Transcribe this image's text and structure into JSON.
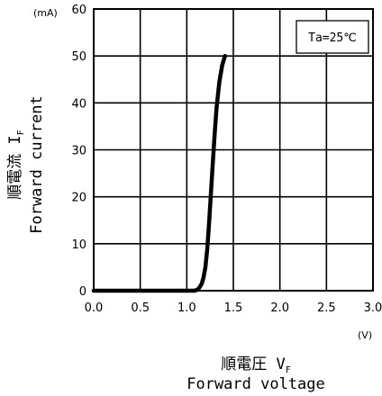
{
  "chart_data": {
    "type": "line",
    "x": [
      0.0,
      0.5,
      1.0,
      1.05,
      1.08,
      1.1,
      1.12,
      1.14,
      1.16,
      1.18,
      1.2,
      1.22,
      1.24,
      1.26,
      1.28,
      1.3,
      1.32,
      1.35,
      1.38,
      1.41
    ],
    "y": [
      0.0,
      0.0,
      0.0,
      0.0,
      0.0,
      0.1,
      0.3,
      0.8,
      1.5,
      2.8,
      5.0,
      9.0,
      14.5,
      21.0,
      27.5,
      33.5,
      39.0,
      44.5,
      48.0,
      50.0
    ],
    "xlim": [
      0.0,
      3.0
    ],
    "ylim": [
      0,
      60
    ],
    "xticks": [
      "0.0",
      "0.5",
      "1.0",
      "1.5",
      "2.0",
      "2.5",
      "3.0"
    ],
    "yticks": [
      "0",
      "10",
      "20",
      "30",
      "40",
      "50",
      "60"
    ],
    "x_unit": "(V)",
    "y_unit": "(mA)",
    "xlabel_jp": "順電圧 V",
    "xlabel_sub": "F",
    "xlabel_en": "Forward voltage",
    "ylabel_jp": "順電流 I",
    "ylabel_sub": "F",
    "ylabel_en": "Forward current",
    "legend": "Ta=25℃",
    "legend_position": "top-right",
    "grid": true
  }
}
